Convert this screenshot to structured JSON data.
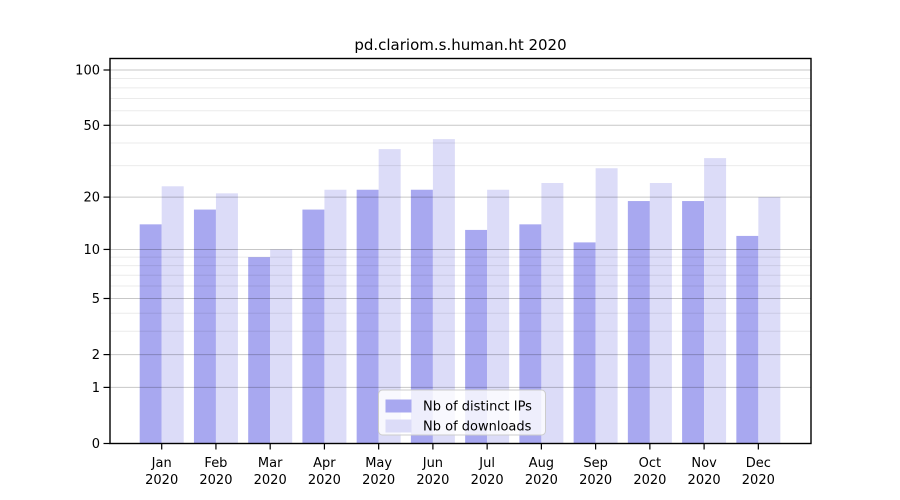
{
  "chart_data": {
    "type": "bar",
    "title": "pd.clariom.s.human.ht 2020",
    "categories": [
      "Jan",
      "Feb",
      "Mar",
      "Apr",
      "May",
      "Jun",
      "Jul",
      "Aug",
      "Sep",
      "Oct",
      "Nov",
      "Dec"
    ],
    "category_year": "2020",
    "series": [
      {
        "name": "Nb of distinct IPs",
        "color": "#a8a8f0",
        "values": [
          14,
          17,
          9,
          17,
          22,
          22,
          13,
          14,
          11,
          19,
          19,
          12
        ]
      },
      {
        "name": "Nb of downloads",
        "color": "#dcdcf8",
        "values": [
          23,
          21,
          10,
          22,
          37,
          42,
          22,
          24,
          29,
          24,
          33,
          20
        ]
      }
    ],
    "y_scale": "log1p",
    "y_major_ticks": [
      0,
      1,
      2,
      5,
      10,
      20,
      50,
      100
    ],
    "y_minor_gridlines": [
      3,
      4,
      6,
      7,
      8,
      9,
      30,
      40,
      60,
      70,
      80,
      90
    ],
    "ylim": [
      0,
      110
    ],
    "xlabel": "",
    "ylabel": "",
    "grid": "horizontal, drawn above bars",
    "legend_position": "lower center",
    "colors": {
      "background": "#ffffff",
      "axis": "#000000",
      "major_grid": "rgba(0,0,0,0.22)",
      "minor_grid": "rgba(0,0,0,0.08)",
      "legend_bg": "rgba(255,255,255,0.8)",
      "legend_border": "#cccccc",
      "text": "#000000"
    }
  }
}
